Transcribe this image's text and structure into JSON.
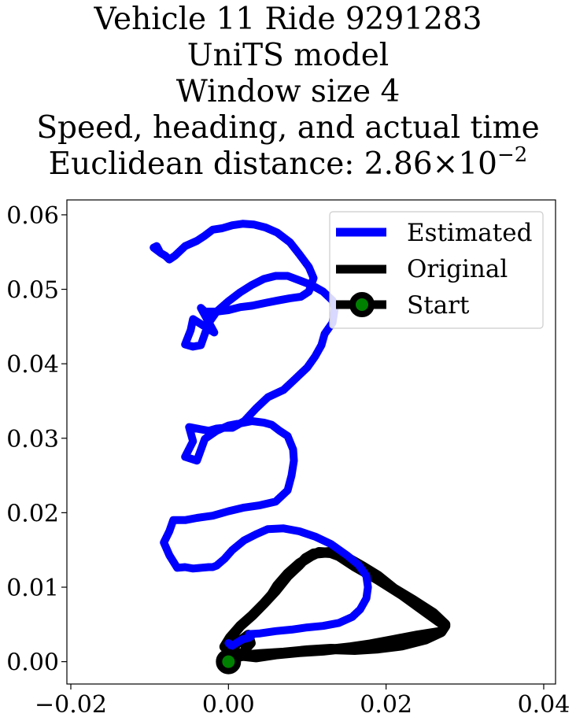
{
  "title": {
    "line1": "Vehicle 11 Ride 9291283",
    "line2": "UniTS model",
    "line3": "Window size 4",
    "line4": "Speed, heading, and actual time",
    "line5_prefix": "Euclidean distance: 2.86",
    "line5_times": "×",
    "line5_base": "10",
    "line5_exp": "−2"
  },
  "chart_data": {
    "type": "line",
    "xlim": [
      -0.0205,
      0.0415
    ],
    "ylim": [
      -0.003,
      0.062
    ],
    "xticks": [
      -0.02,
      0.0,
      0.02,
      0.04
    ],
    "xtick_labels": [
      "−0.02",
      "0.00",
      "0.02",
      "0.04"
    ],
    "yticks": [
      0.0,
      0.01,
      0.02,
      0.03,
      0.04,
      0.05,
      0.06
    ],
    "ytick_labels": [
      "0.00",
      "0.01",
      "0.02",
      "0.03",
      "0.04",
      "0.05",
      "0.06"
    ],
    "grid": false,
    "legend_position": "upper right",
    "series": [
      {
        "name": "Estimated",
        "color": "#0000ff",
        "x": [
          0.0,
          0.0004,
          0.001,
          0.0018,
          0.0026,
          0.0029,
          0.0026,
          0.004,
          0.006,
          0.008,
          0.01,
          0.012,
          0.014,
          0.0157,
          0.0167,
          0.0175,
          0.0177,
          0.0175,
          0.0165,
          0.015,
          0.013,
          0.011,
          0.009,
          0.007,
          0.005,
          0.0035,
          0.002,
          0.0005,
          -0.0005,
          -0.0015,
          -0.002,
          -0.0025,
          -0.0045,
          -0.0055,
          -0.0065,
          -0.0075,
          -0.0082,
          -0.0075,
          -0.007,
          -0.0055,
          -0.004,
          -0.002,
          0.0,
          0.002,
          0.004,
          0.006,
          0.0075,
          0.008,
          0.0083,
          0.0082,
          0.0075,
          0.0065,
          0.0055,
          0.0045,
          0.003,
          0.0015,
          0.0,
          -0.0015,
          -0.003,
          -0.004,
          -0.0055,
          -0.0045,
          -0.005,
          -0.0025,
          -0.0015,
          -0.0005,
          0.0005,
          0.002,
          0.0035,
          0.005,
          0.007,
          0.0085,
          0.01,
          0.011,
          0.0118,
          0.0122,
          0.0132,
          0.0135,
          0.0132,
          0.012,
          0.0105,
          0.009,
          0.0075,
          0.006,
          0.0045,
          0.003,
          0.0015,
          0.0,
          -0.0015,
          -0.0025,
          -0.0035,
          -0.0045,
          -0.0055,
          -0.0048,
          -0.0045,
          -0.0018,
          -0.0035,
          -0.003,
          -0.0015,
          0.0,
          0.0015,
          0.003,
          0.0048,
          0.0063,
          0.0078,
          0.0092,
          0.0102,
          0.0108,
          0.0102,
          0.009,
          0.0078,
          0.0062,
          0.0047,
          0.0032,
          0.0018,
          0.0005,
          -0.0008,
          -0.002,
          -0.003,
          -0.004,
          -0.0055,
          -0.0068,
          -0.0075,
          -0.008,
          -0.0085,
          -0.0095,
          -0.0091,
          -0.0088
        ],
        "y": [
          0.0025,
          0.0021,
          0.0025,
          0.003,
          0.0032,
          0.0034,
          0.0037,
          0.0038,
          0.0041,
          0.0043,
          0.0046,
          0.0048,
          0.0052,
          0.006,
          0.007,
          0.0085,
          0.01,
          0.0115,
          0.013,
          0.0143,
          0.0158,
          0.0168,
          0.0175,
          0.0179,
          0.0178,
          0.0171,
          0.0163,
          0.015,
          0.0138,
          0.0129,
          0.0127,
          0.0127,
          0.0125,
          0.0127,
          0.0126,
          0.0143,
          0.016,
          0.0175,
          0.019,
          0.019,
          0.0193,
          0.0196,
          0.0202,
          0.0207,
          0.021,
          0.0215,
          0.023,
          0.025,
          0.027,
          0.0285,
          0.0303,
          0.031,
          0.0318,
          0.0321,
          0.0323,
          0.032,
          0.0317,
          0.031,
          0.0299,
          0.027,
          0.0275,
          0.0296,
          0.0315,
          0.031,
          0.0313,
          0.0314,
          0.0314,
          0.0323,
          0.034,
          0.0355,
          0.0365,
          0.038,
          0.0395,
          0.041,
          0.0425,
          0.044,
          0.0455,
          0.0475,
          0.0485,
          0.0497,
          0.0506,
          0.0512,
          0.0518,
          0.0518,
          0.0514,
          0.0506,
          0.0496,
          0.0484,
          0.047,
          0.0455,
          0.0425,
          0.0423,
          0.0426,
          0.0445,
          0.046,
          0.0442,
          0.0475,
          0.047,
          0.047,
          0.0472,
          0.0476,
          0.0478,
          0.0482,
          0.0485,
          0.0488,
          0.049,
          0.0497,
          0.0515,
          0.053,
          0.0547,
          0.0563,
          0.0576,
          0.0583,
          0.0587,
          0.0588,
          0.0586,
          0.0582,
          0.058,
          0.0572,
          0.0565,
          0.0558,
          0.0545,
          0.054,
          0.0545,
          0.0548,
          0.0556,
          0.0558,
          0.0552
        ]
      },
      {
        "name": "Original",
        "color": "#000000",
        "x": [
          0.0,
          0.002,
          0.004,
          0.007,
          0.01,
          0.013,
          0.016,
          0.019,
          0.022,
          0.025,
          0.027,
          0.0275,
          0.026,
          0.0235,
          0.021,
          0.019,
          0.017,
          0.015,
          0.0128,
          0.0108,
          0.0098,
          0.009,
          0.0075,
          0.006,
          0.0045,
          0.003,
          0.0015,
          0.0005,
          -0.0005,
          0.0002,
          0.0015,
          0.003,
          0.0045,
          0.0055,
          0.0062,
          0.0075,
          0.009,
          0.0105,
          0.0115,
          0.013,
          0.014,
          0.016,
          0.019,
          0.022,
          0.025,
          0.0275,
          0.027,
          0.024,
          0.021,
          0.018,
          0.0155,
          0.012,
          0.009,
          0.006,
          0.0035,
          0.0018,
          0.0003,
          0.0025,
          0.0028,
          0.0022
        ],
        "y": [
          0.0005,
          0.0008,
          0.001,
          0.0012,
          0.0015,
          0.0017,
          0.0016,
          0.0018,
          0.0022,
          0.003,
          0.004,
          0.005,
          0.0065,
          0.0082,
          0.0098,
          0.0115,
          0.0128,
          0.014,
          0.0147,
          0.0145,
          0.0139,
          0.013,
          0.0115,
          0.0095,
          0.0078,
          0.0062,
          0.0048,
          0.0035,
          0.002,
          0.0032,
          0.0048,
          0.0062,
          0.0078,
          0.009,
          0.0102,
          0.0118,
          0.0132,
          0.0142,
          0.0147,
          0.0146,
          0.0142,
          0.0128,
          0.011,
          0.009,
          0.0067,
          0.0048,
          0.004,
          0.0035,
          0.0029,
          0.0023,
          0.0019,
          0.0015,
          0.0013,
          0.001,
          0.0006,
          0.0008,
          0.0018,
          0.0036,
          0.0025,
          0.0018
        ]
      },
      {
        "name": "Start",
        "color": "#000000",
        "marker_color": "#008000",
        "x": [
          0.0
        ],
        "y": [
          0.0
        ]
      }
    ]
  }
}
